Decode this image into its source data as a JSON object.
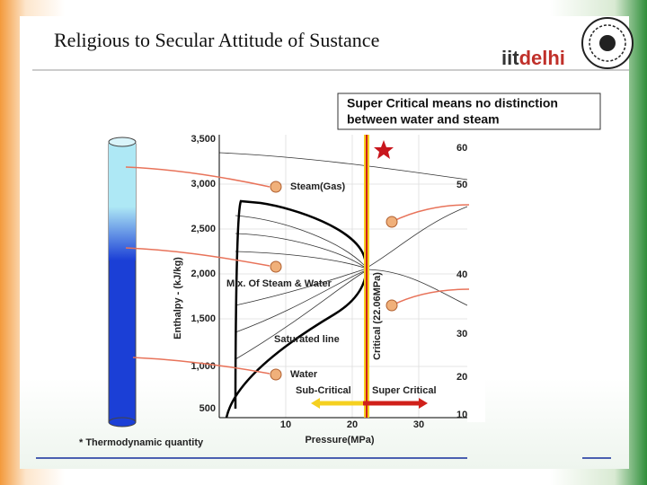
{
  "header": {
    "title": "Religious to Secular Attitude of Sustance",
    "logo_part1": "iit",
    "logo_part2": "delhi"
  },
  "diagram": {
    "banner": [
      "Super Critical means no distinction",
      "between water and steam"
    ],
    "y_ticks": [
      "3,500",
      "3,000",
      "2,500",
      "2,000",
      "1,500",
      "1,000",
      "500"
    ],
    "x_ticks": [
      "10",
      "20",
      "30"
    ],
    "right_ticks": [
      "60",
      "50",
      "40",
      "30",
      "20",
      "10"
    ],
    "y_axis_title": "Enthalpy - (kJ/kg)",
    "x_axis_title": "Pressure(MPa)",
    "critical_label": "Critical (22.06MPa)",
    "regions": [
      "Steam(Gas)",
      "Mix. Of  Steam & Water",
      "Saturated line",
      "Water",
      "Sub-Critical",
      "Super Critical"
    ],
    "footnote": "* Thermodynamic quantity"
  }
}
